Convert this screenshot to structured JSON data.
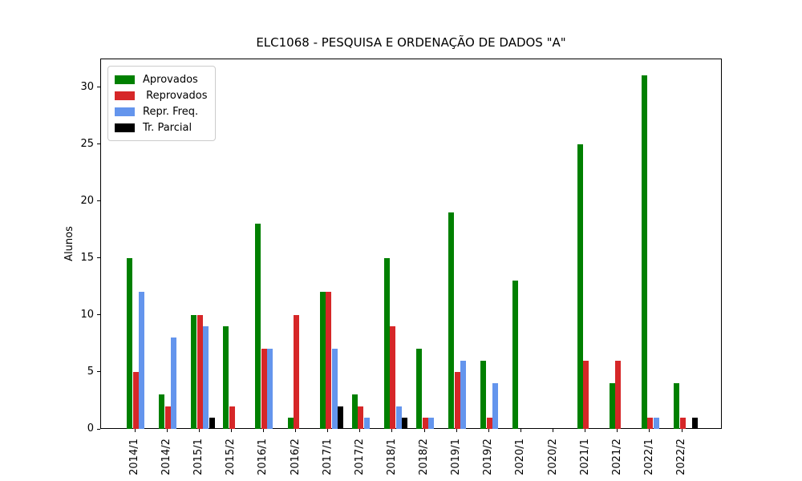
{
  "chart_data": {
    "type": "bar",
    "title": "ELC1068 - PESQUISA E ORDENAÇÃO DE DADOS \"A\"",
    "xlabel": "",
    "ylabel": "Alunos",
    "categories": [
      "2014/1",
      "2014/2",
      "2015/1",
      "2015/2",
      "2016/1",
      "2016/2",
      "2017/1",
      "2017/2",
      "2018/1",
      "2018/2",
      "2019/1",
      "2019/2",
      "2020/1",
      "2020/2",
      "2021/1",
      "2021/2",
      "2022/1",
      "2022/2"
    ],
    "series": [
      {
        "name": "Aprovados",
        "legend_label": "Aprovados",
        "color": "#008000",
        "values": [
          15,
          3,
          10,
          9,
          18,
          1,
          12,
          3,
          15,
          7,
          19,
          6,
          13,
          0,
          25,
          4,
          31,
          4
        ]
      },
      {
        "name": "Reprovados",
        "legend_label": " Reprovados",
        "color": "#d62728",
        "values": [
          5,
          2,
          10,
          2,
          7,
          10,
          12,
          2,
          9,
          1,
          5,
          1,
          0,
          0,
          6,
          6,
          1,
          1
        ]
      },
      {
        "name": "Repr. Freq.",
        "legend_label": "Repr. Freq.",
        "color": "#6495ed",
        "values": [
          12,
          8,
          9,
          0,
          7,
          0,
          7,
          1,
          2,
          1,
          6,
          4,
          0,
          0,
          0,
          0,
          1,
          0
        ]
      },
      {
        "name": "Tr. Parcial",
        "legend_label": "Tr. Parcial",
        "color": "#000000",
        "values": [
          0,
          0,
          1,
          0,
          0,
          0,
          2,
          0,
          1,
          0,
          0,
          0,
          0,
          0,
          0,
          0,
          0,
          1
        ]
      }
    ],
    "ylim": [
      0,
      32.5
    ],
    "yticks": [
      0,
      5,
      10,
      15,
      20,
      25,
      30
    ],
    "grid": false,
    "legend_position": "upper-left"
  }
}
